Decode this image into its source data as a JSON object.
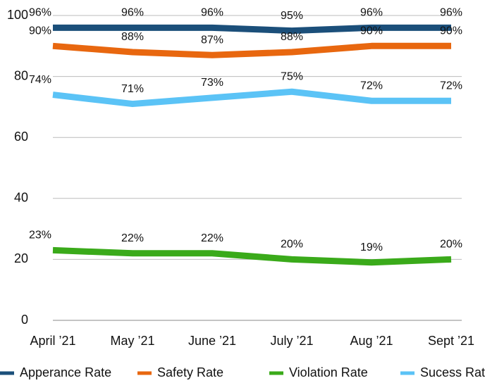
{
  "chart_data": {
    "type": "line",
    "categories": [
      "April ’21",
      "May ’21",
      "June ’21",
      "July ’21",
      "Aug ’21",
      "Sept ’21"
    ],
    "series": [
      {
        "name": "Apperance Rate",
        "color": "#1b4f7a",
        "values": [
          96,
          96,
          96,
          95,
          96,
          96
        ],
        "value_labels": [
          "96%",
          "96%",
          "96%",
          "95%",
          "96%",
          "96%"
        ]
      },
      {
        "name": "Safety Rate",
        "color": "#e8670f",
        "values": [
          90,
          88,
          87,
          88,
          90,
          90
        ],
        "value_labels": [
          "90%",
          "88%",
          "87%",
          "88%",
          "90%",
          "90%"
        ]
      },
      {
        "name": "Violation Rate",
        "color": "#3aaa1a",
        "values": [
          23,
          22,
          22,
          20,
          19,
          20
        ],
        "value_labels": [
          "23%",
          "22%",
          "22%",
          "20%",
          "19%",
          "20%"
        ]
      },
      {
        "name": "Sucess Rate",
        "color": "#5bc3f6",
        "values": [
          74,
          71,
          73,
          75,
          72,
          72
        ],
        "value_labels": [
          "74%",
          "71%",
          "73%",
          "75%",
          "72%",
          "72%"
        ]
      }
    ],
    "ylim": [
      0,
      100
    ],
    "yticks": [
      0,
      20,
      40,
      60,
      80,
      100
    ],
    "grid": true,
    "legend": "bottom"
  }
}
